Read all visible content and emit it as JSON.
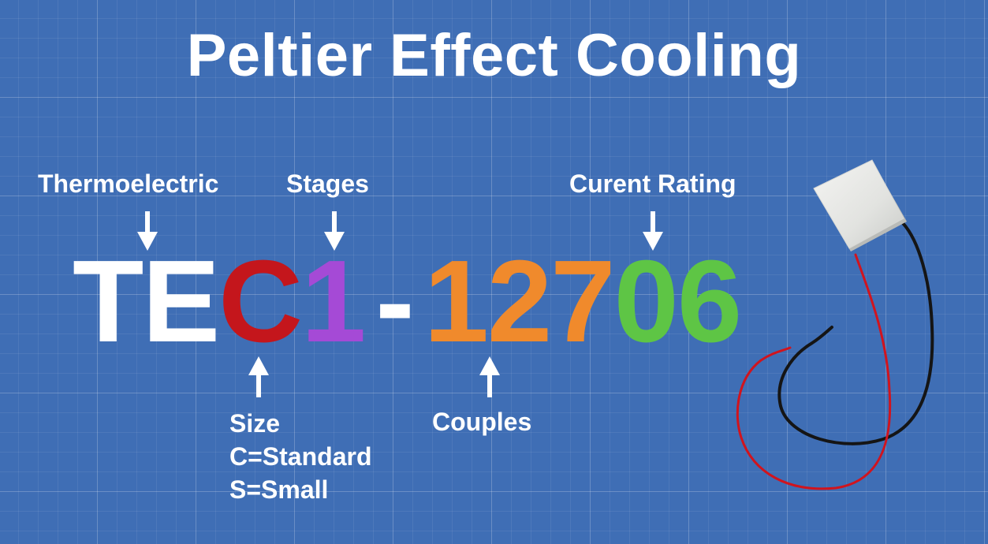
{
  "title": "Peltier Effect Cooling",
  "part_number": {
    "segments": [
      {
        "text": "T",
        "color": "#ffffff"
      },
      {
        "text": "E",
        "color": "#ffffff"
      },
      {
        "text": "C",
        "color": "#c4161c"
      },
      {
        "text": "1",
        "color": "#a54ad6"
      },
      {
        "text": "-",
        "color": "#ffffff"
      },
      {
        "text": "1",
        "color": "#f08a2c"
      },
      {
        "text": "2",
        "color": "#f08a2c"
      },
      {
        "text": "7",
        "color": "#f08a2c"
      },
      {
        "text": "0",
        "color": "#5ec545"
      },
      {
        "text": "6",
        "color": "#5ec545"
      }
    ]
  },
  "labels": {
    "thermoelectric": "Thermoelectric",
    "stages": "Stages",
    "current_rating": "Curent Rating",
    "couples": "Couples",
    "size": {
      "heading": "Size",
      "standard": "C=Standard",
      "small": "S=Small"
    }
  },
  "colors": {
    "background": "#3f6eb5",
    "text": "#ffffff",
    "red_wire": "#d0141e",
    "black_wire": "#151515"
  },
  "icons": {
    "down_arrow": "arrow-down-icon",
    "up_arrow": "arrow-up-icon",
    "module": "peltier-module-icon"
  }
}
